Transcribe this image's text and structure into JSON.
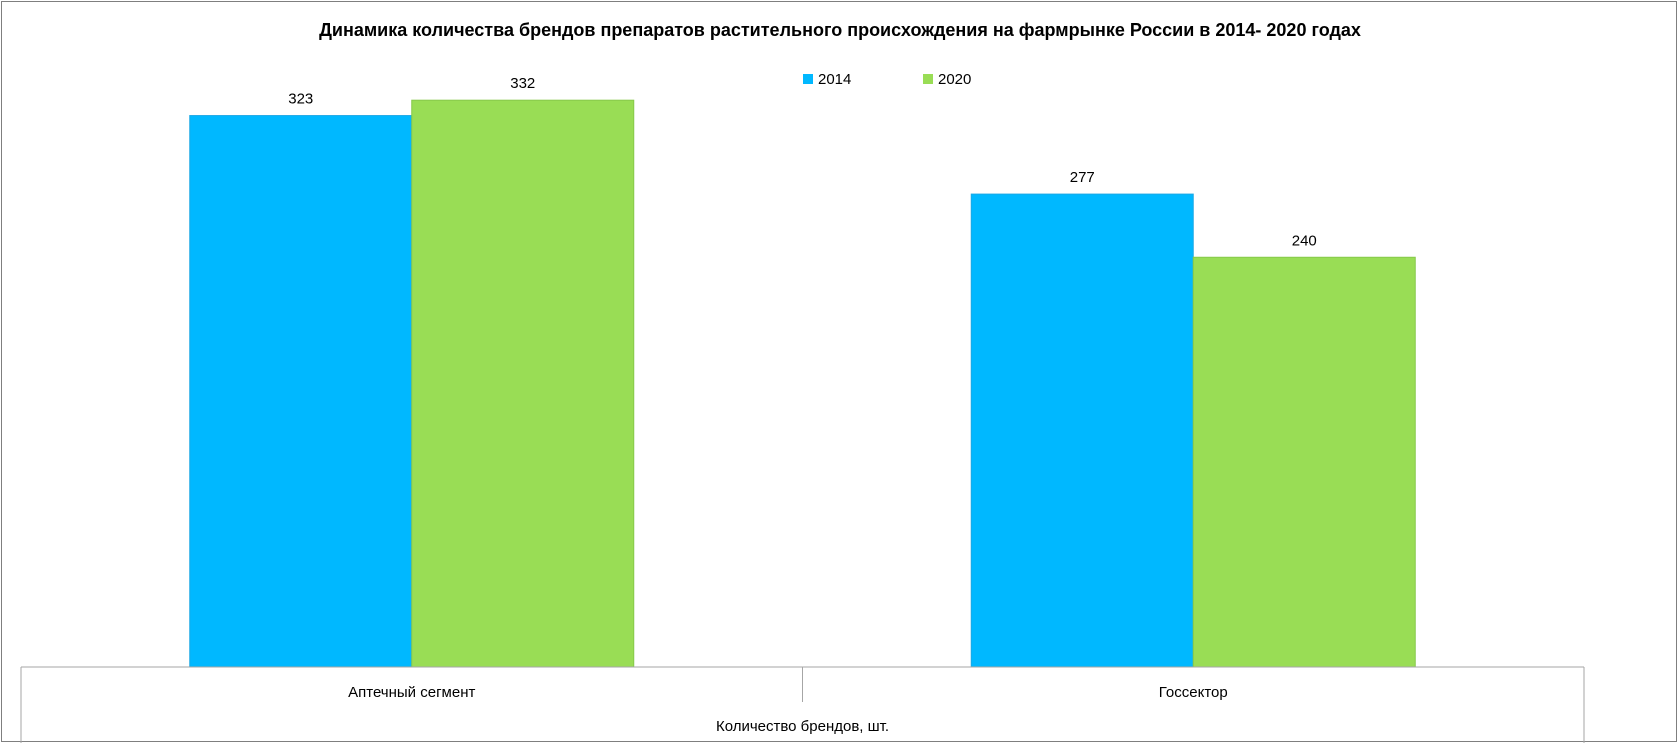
{
  "chart_data": {
    "type": "bar",
    "title": "Динамика количества брендов препаратов растительного происхождения на  фармрынке России в 2014- 2020 годах",
    "categories": [
      "Аптечный сегмент",
      "Госсектор"
    ],
    "group_label": "Количество брендов, шт.",
    "series": [
      {
        "name": "2014",
        "values": [
          323,
          277
        ],
        "color": "#00B8FF"
      },
      {
        "name": "2020",
        "values": [
          332,
          240
        ],
        "color": "#99DD55"
      }
    ],
    "ylim": [
      0,
      345
    ],
    "grid": false,
    "legend": "top-center",
    "data_labels": true
  }
}
